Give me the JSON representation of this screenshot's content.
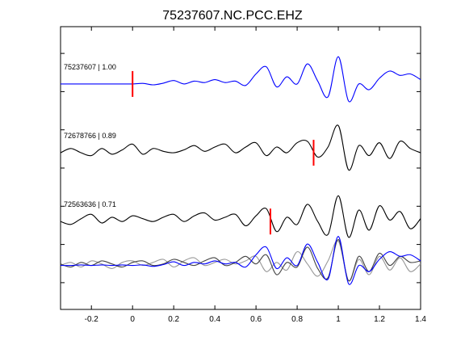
{
  "chart_data": {
    "type": "line",
    "title": "75237607.NC.PCC.EHZ",
    "xlabel": "",
    "ylabel": "",
    "xlim": [
      -0.35,
      1.4
    ],
    "ylim": [
      -0.2,
      7.2
    ],
    "x_ticks": [
      -0.2,
      0,
      0.2,
      0.4,
      0.6,
      0.8,
      1,
      1.2,
      1.4
    ],
    "x_tick_labels": [
      "-0.2",
      "0",
      "0.2",
      "0.4",
      "0.6",
      "0.8",
      "1",
      "1.2",
      "1.4"
    ],
    "y_ticks": [
      0.5,
      1.5,
      2.5,
      3.5,
      4.5,
      5.5,
      6.5
    ],
    "grid": false,
    "legend": "none",
    "colors": {
      "reference": "#0000ff",
      "trace": "#000000",
      "overlay_gray_1": "#444444",
      "overlay_gray_2": "#999999",
      "pick": "#ff0000"
    },
    "trace_labels": [
      "75237607 | 1.00",
      "72678766 | 0.89",
      "72563636 | 0.71"
    ],
    "pick_times": [
      0.0,
      0.88,
      0.67
    ],
    "series": [
      {
        "label_index": 0,
        "color": "reference",
        "offset": 5.7,
        "amp": 0.75,
        "x": [
          -0.35,
          -0.3,
          -0.25,
          -0.2,
          -0.15,
          -0.1,
          -0.05,
          0.0,
          0.05,
          0.1,
          0.15,
          0.2,
          0.25,
          0.3,
          0.35,
          0.4,
          0.45,
          0.5,
          0.55,
          0.6,
          0.65,
          0.7,
          0.75,
          0.8,
          0.85,
          0.9,
          0.95,
          1.0,
          1.05,
          1.1,
          1.15,
          1.2,
          1.25,
          1.3,
          1.35,
          1.4
        ],
        "y": [
          0.0,
          0.0,
          0.0,
          0.0,
          0.0,
          0.0,
          0.0,
          0.0,
          0.02,
          -0.03,
          0.03,
          0.12,
          0.0,
          0.1,
          0.05,
          0.15,
          0.05,
          0.1,
          -0.05,
          0.35,
          0.6,
          -0.1,
          0.25,
          0.0,
          0.7,
          0.1,
          -0.45,
          0.95,
          -0.6,
          0.0,
          -0.2,
          0.2,
          0.45,
          0.3,
          0.35,
          0.15
        ]
      },
      {
        "label_index": 1,
        "color": "trace",
        "offset": 3.9,
        "amp": 0.75,
        "x": [
          -0.35,
          -0.3,
          -0.25,
          -0.2,
          -0.15,
          -0.1,
          -0.05,
          0.0,
          0.05,
          0.1,
          0.15,
          0.2,
          0.25,
          0.3,
          0.35,
          0.4,
          0.45,
          0.5,
          0.55,
          0.6,
          0.65,
          0.7,
          0.75,
          0.8,
          0.85,
          0.9,
          0.95,
          1.0,
          1.05,
          1.1,
          1.15,
          1.2,
          1.25,
          1.3,
          1.35,
          1.4
        ],
        "y": [
          0.0,
          0.15,
          0.0,
          -0.1,
          0.15,
          -0.05,
          0.1,
          0.3,
          -0.05,
          0.15,
          0.05,
          0.0,
          0.1,
          0.25,
          0.05,
          0.2,
          0.3,
          0.0,
          0.2,
          0.35,
          -0.1,
          0.2,
          0.0,
          0.35,
          0.4,
          -0.15,
          0.2,
          0.95,
          -0.6,
          0.25,
          -0.1,
          0.35,
          -0.2,
          0.4,
          0.15,
          0.0
        ]
      },
      {
        "label_index": 2,
        "color": "trace",
        "offset": 2.1,
        "amp": 0.75,
        "x": [
          -0.35,
          -0.3,
          -0.25,
          -0.2,
          -0.15,
          -0.1,
          -0.05,
          0.0,
          0.05,
          0.1,
          0.15,
          0.2,
          0.25,
          0.3,
          0.35,
          0.4,
          0.45,
          0.5,
          0.55,
          0.6,
          0.65,
          0.7,
          0.75,
          0.8,
          0.85,
          0.9,
          0.95,
          1.0,
          1.05,
          1.1,
          1.15,
          1.2,
          1.25,
          1.3,
          1.35,
          1.4
        ],
        "y": [
          0.0,
          -0.1,
          0.1,
          0.25,
          -0.05,
          0.15,
          0.0,
          0.2,
          0.1,
          0.0,
          0.15,
          0.25,
          0.0,
          0.2,
          0.3,
          0.05,
          0.15,
          0.25,
          -0.15,
          0.2,
          0.45,
          -0.35,
          0.15,
          -0.1,
          0.6,
          0.0,
          -0.45,
          0.9,
          -0.55,
          0.4,
          -0.3,
          0.55,
          0.05,
          0.35,
          -0.25,
          0.1
        ]
      },
      {
        "label_index": 3,
        "color": "overlay_gray_2",
        "offset": 0.95,
        "amp": 0.8,
        "x": [
          -0.35,
          -0.3,
          -0.25,
          -0.2,
          -0.15,
          -0.1,
          -0.05,
          0.0,
          0.05,
          0.1,
          0.15,
          0.2,
          0.25,
          0.3,
          0.35,
          0.4,
          0.45,
          0.5,
          0.55,
          0.6,
          0.65,
          0.7,
          0.75,
          0.8,
          0.85,
          0.9,
          0.95,
          1.0,
          1.05,
          1.1,
          1.15,
          1.2,
          1.25,
          1.3,
          1.35,
          1.4
        ],
        "y": [
          0.0,
          0.1,
          -0.05,
          0.15,
          0.05,
          -0.1,
          0.1,
          0.15,
          0.0,
          0.1,
          0.2,
          -0.05,
          0.15,
          0.25,
          0.0,
          0.1,
          0.2,
          0.05,
          0.15,
          0.3,
          -0.2,
          0.1,
          -0.15,
          0.45,
          0.05,
          -0.35,
          0.15,
          0.8,
          -0.5,
          0.2,
          -0.3,
          0.3,
          -0.15,
          0.25,
          -0.2,
          0.05
        ]
      },
      {
        "label_index": 3,
        "color": "overlay_gray_1",
        "offset": 0.95,
        "amp": 0.8,
        "x": [
          -0.35,
          -0.3,
          -0.25,
          -0.2,
          -0.15,
          -0.1,
          -0.05,
          0.0,
          0.05,
          0.1,
          0.15,
          0.2,
          0.25,
          0.3,
          0.35,
          0.4,
          0.45,
          0.5,
          0.55,
          0.6,
          0.65,
          0.7,
          0.75,
          0.8,
          0.85,
          0.9,
          0.95,
          1.0,
          1.05,
          1.1,
          1.15,
          1.2,
          1.25,
          1.3,
          1.35,
          1.4
        ],
        "y": [
          0.05,
          -0.05,
          0.1,
          0.0,
          0.15,
          0.05,
          -0.05,
          0.1,
          0.15,
          0.0,
          0.05,
          0.2,
          0.1,
          0.0,
          0.15,
          0.25,
          0.0,
          0.1,
          0.3,
          0.05,
          0.35,
          -0.3,
          0.1,
          -0.05,
          0.6,
          -0.1,
          -0.4,
          0.85,
          -0.5,
          0.3,
          -0.2,
          0.4,
          0.0,
          0.3,
          0.1,
          0.15
        ]
      },
      {
        "label_index": 3,
        "color": "reference",
        "offset": 0.95,
        "amp": 0.8,
        "x": [
          -0.35,
          -0.3,
          -0.25,
          -0.2,
          -0.15,
          -0.1,
          -0.05,
          0.0,
          0.05,
          0.1,
          0.15,
          0.2,
          0.25,
          0.3,
          0.35,
          0.4,
          0.45,
          0.5,
          0.55,
          0.6,
          0.65,
          0.7,
          0.75,
          0.8,
          0.85,
          0.9,
          0.95,
          1.0,
          1.05,
          1.1,
          1.15,
          1.2,
          1.25,
          1.3,
          1.35,
          1.4
        ],
        "y": [
          0.0,
          0.0,
          0.02,
          0.0,
          0.02,
          0.0,
          0.02,
          0.0,
          0.02,
          -0.03,
          0.03,
          0.12,
          0.0,
          0.1,
          0.05,
          0.15,
          0.05,
          0.1,
          -0.05,
          0.35,
          0.6,
          -0.1,
          0.25,
          0.0,
          0.7,
          0.1,
          -0.45,
          0.95,
          -0.6,
          0.0,
          -0.2,
          0.2,
          0.45,
          0.3,
          0.35,
          0.15
        ]
      }
    ]
  }
}
